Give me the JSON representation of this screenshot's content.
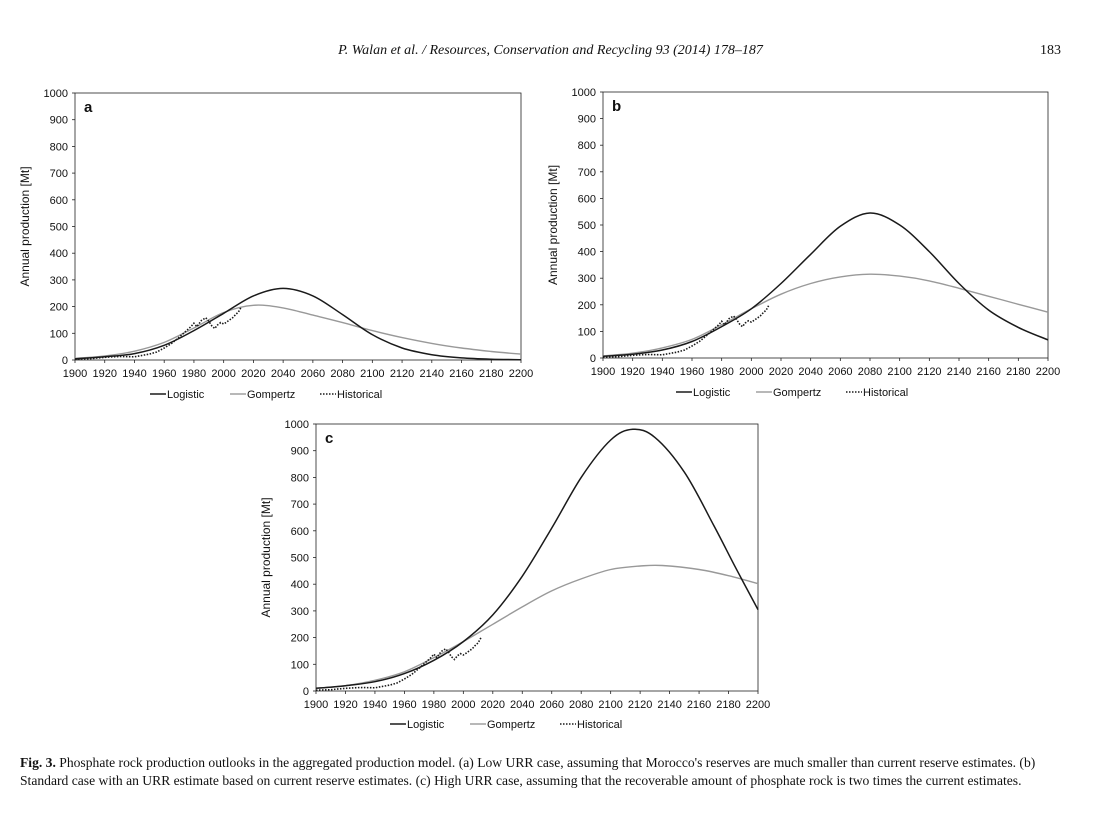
{
  "header": {
    "journal_ref": "P. Walan et al. / Resources, Conservation and Recycling 93 (2014) 178–187",
    "page_number": "183"
  },
  "chart_data": [
    {
      "type": "line",
      "panel_label": "a",
      "ylabel": "Annual production [Mt]",
      "xlim": [
        1900,
        2200
      ],
      "ylim": [
        0,
        1000
      ],
      "x_ticks": [
        1900,
        1920,
        1940,
        1960,
        1980,
        2000,
        2020,
        2040,
        2060,
        2080,
        2100,
        2120,
        2140,
        2160,
        2180,
        2200
      ],
      "y_ticks": [
        0,
        100,
        200,
        300,
        400,
        500,
        600,
        700,
        800,
        900,
        1000
      ],
      "series": [
        {
          "name": "Logistic",
          "style": "solid",
          "color": "#1a1a1a",
          "points": [
            [
              1900,
              4
            ],
            [
              1920,
              12
            ],
            [
              1940,
              24
            ],
            [
              1960,
              55
            ],
            [
              1980,
              110
            ],
            [
              2000,
              175
            ],
            [
              2020,
              240
            ],
            [
              2040,
              268
            ],
            [
              2060,
              240
            ],
            [
              2080,
              170
            ],
            [
              2100,
              95
            ],
            [
              2120,
              45
            ],
            [
              2140,
              20
            ],
            [
              2160,
              8
            ],
            [
              2180,
              3
            ],
            [
              2200,
              1
            ]
          ]
        },
        {
          "name": "Gompertz",
          "style": "solid",
          "color": "#999999",
          "points": [
            [
              1900,
              6
            ],
            [
              1920,
              15
            ],
            [
              1940,
              33
            ],
            [
              1960,
              66
            ],
            [
              1980,
              120
            ],
            [
              2000,
              178
            ],
            [
              2020,
              205
            ],
            [
              2040,
              195
            ],
            [
              2060,
              168
            ],
            [
              2080,
              140
            ],
            [
              2100,
              110
            ],
            [
              2120,
              84
            ],
            [
              2140,
              62
            ],
            [
              2160,
              45
            ],
            [
              2180,
              32
            ],
            [
              2200,
              22
            ]
          ]
        },
        {
          "name": "Historical",
          "style": "dotted",
          "color": "#1a1a1a",
          "points": [
            [
              1900,
              3
            ],
            [
              1910,
              5
            ],
            [
              1920,
              10
            ],
            [
              1930,
              13
            ],
            [
              1940,
              12
            ],
            [
              1950,
              22
            ],
            [
              1955,
              30
            ],
            [
              1960,
              45
            ],
            [
              1965,
              62
            ],
            [
              1970,
              85
            ],
            [
              1975,
              110
            ],
            [
              1978,
              125
            ],
            [
              1980,
              138
            ],
            [
              1982,
              125
            ],
            [
              1985,
              148
            ],
            [
              1988,
              158
            ],
            [
              1990,
              145
            ],
            [
              1992,
              128
            ],
            [
              1994,
              118
            ],
            [
              1996,
              132
            ],
            [
              1998,
              140
            ],
            [
              2000,
              135
            ],
            [
              2002,
              142
            ],
            [
              2004,
              150
            ],
            [
              2006,
              158
            ],
            [
              2008,
              170
            ],
            [
              2010,
              180
            ],
            [
              2012,
              200
            ]
          ]
        }
      ],
      "legend": [
        "Logistic",
        "Gompertz",
        "Historical"
      ]
    },
    {
      "type": "line",
      "panel_label": "b",
      "ylabel": "Annual production [Mt]",
      "xlim": [
        1900,
        2200
      ],
      "ylim": [
        0,
        1000
      ],
      "x_ticks": [
        1900,
        1920,
        1940,
        1960,
        1980,
        2000,
        2020,
        2040,
        2060,
        2080,
        2100,
        2120,
        2140,
        2160,
        2180,
        2200
      ],
      "y_ticks": [
        0,
        100,
        200,
        300,
        400,
        500,
        600,
        700,
        800,
        900,
        1000
      ],
      "series": [
        {
          "name": "Logistic",
          "style": "solid",
          "color": "#1a1a1a",
          "points": [
            [
              1900,
              6
            ],
            [
              1920,
              14
            ],
            [
              1940,
              30
            ],
            [
              1960,
              62
            ],
            [
              1980,
              118
            ],
            [
              2000,
              185
            ],
            [
              2020,
              280
            ],
            [
              2040,
              390
            ],
            [
              2060,
              495
            ],
            [
              2080,
              545
            ],
            [
              2100,
              500
            ],
            [
              2120,
              400
            ],
            [
              2140,
              280
            ],
            [
              2160,
              180
            ],
            [
              2180,
              115
            ],
            [
              2200,
              68
            ]
          ]
        },
        {
          "name": "Gompertz",
          "style": "solid",
          "color": "#999999",
          "points": [
            [
              1900,
              8
            ],
            [
              1920,
              18
            ],
            [
              1940,
              38
            ],
            [
              1960,
              70
            ],
            [
              1980,
              125
            ],
            [
              2000,
              185
            ],
            [
              2020,
              240
            ],
            [
              2040,
              280
            ],
            [
              2060,
              305
            ],
            [
              2080,
              315
            ],
            [
              2100,
              308
            ],
            [
              2120,
              290
            ],
            [
              2140,
              262
            ],
            [
              2160,
              232
            ],
            [
              2180,
              202
            ],
            [
              2200,
              172
            ]
          ]
        },
        {
          "name": "Historical",
          "style": "dotted",
          "color": "#1a1a1a",
          "points": [
            [
              1900,
              3
            ],
            [
              1910,
              5
            ],
            [
              1920,
              10
            ],
            [
              1930,
              13
            ],
            [
              1940,
              12
            ],
            [
              1950,
              22
            ],
            [
              1955,
              30
            ],
            [
              1960,
              45
            ],
            [
              1965,
              62
            ],
            [
              1970,
              85
            ],
            [
              1975,
              110
            ],
            [
              1978,
              125
            ],
            [
              1980,
              138
            ],
            [
              1982,
              125
            ],
            [
              1985,
              148
            ],
            [
              1988,
              158
            ],
            [
              1990,
              145
            ],
            [
              1992,
              128
            ],
            [
              1994,
              118
            ],
            [
              1996,
              132
            ],
            [
              1998,
              140
            ],
            [
              2000,
              135
            ],
            [
              2002,
              142
            ],
            [
              2004,
              150
            ],
            [
              2006,
              158
            ],
            [
              2008,
              170
            ],
            [
              2010,
              180
            ],
            [
              2012,
              200
            ]
          ]
        }
      ],
      "legend": [
        "Logistic",
        "Gompertz",
        "Historical"
      ]
    },
    {
      "type": "line",
      "panel_label": "c",
      "ylabel": "Annual production [Mt]",
      "xlim": [
        1900,
        2200
      ],
      "ylim": [
        0,
        1000
      ],
      "x_ticks": [
        1900,
        1920,
        1940,
        1960,
        1980,
        2000,
        2020,
        2040,
        2060,
        2080,
        2100,
        2120,
        2140,
        2160,
        2180,
        2200
      ],
      "y_ticks": [
        0,
        100,
        200,
        300,
        400,
        500,
        600,
        700,
        800,
        900,
        1000
      ],
      "series": [
        {
          "name": "Logistic",
          "style": "solid",
          "color": "#1a1a1a",
          "points": [
            [
              1900,
              10
            ],
            [
              1920,
              20
            ],
            [
              1940,
              35
            ],
            [
              1960,
              65
            ],
            [
              1980,
              115
            ],
            [
              2000,
              185
            ],
            [
              2020,
              285
            ],
            [
              2040,
              430
            ],
            [
              2060,
              610
            ],
            [
              2080,
              800
            ],
            [
              2100,
              940
            ],
            [
              2115,
              980
            ],
            [
              2130,
              950
            ],
            [
              2150,
              820
            ],
            [
              2170,
              620
            ],
            [
              2185,
              460
            ],
            [
              2200,
              305
            ]
          ]
        },
        {
          "name": "Gompertz",
          "style": "solid",
          "color": "#999999",
          "points": [
            [
              1900,
              10
            ],
            [
              1920,
              20
            ],
            [
              1940,
              40
            ],
            [
              1960,
              72
            ],
            [
              1980,
              125
            ],
            [
              2000,
              185
            ],
            [
              2020,
              250
            ],
            [
              2040,
              315
            ],
            [
              2060,
              375
            ],
            [
              2080,
              420
            ],
            [
              2100,
              455
            ],
            [
              2120,
              468
            ],
            [
              2135,
              470
            ],
            [
              2160,
              455
            ],
            [
              2180,
              432
            ],
            [
              2200,
              402
            ]
          ]
        },
        {
          "name": "Historical",
          "style": "dotted",
          "color": "#1a1a1a",
          "points": [
            [
              1900,
              3
            ],
            [
              1910,
              5
            ],
            [
              1920,
              10
            ],
            [
              1930,
              13
            ],
            [
              1940,
              12
            ],
            [
              1950,
              22
            ],
            [
              1955,
              30
            ],
            [
              1960,
              45
            ],
            [
              1965,
              62
            ],
            [
              1970,
              85
            ],
            [
              1975,
              110
            ],
            [
              1978,
              125
            ],
            [
              1980,
              138
            ],
            [
              1982,
              125
            ],
            [
              1985,
              148
            ],
            [
              1988,
              158
            ],
            [
              1990,
              145
            ],
            [
              1992,
              128
            ],
            [
              1994,
              118
            ],
            [
              1996,
              132
            ],
            [
              1998,
              140
            ],
            [
              2000,
              135
            ],
            [
              2002,
              142
            ],
            [
              2004,
              150
            ],
            [
              2006,
              158
            ],
            [
              2008,
              170
            ],
            [
              2010,
              180
            ],
            [
              2012,
              200
            ]
          ]
        }
      ],
      "legend": [
        "Logistic",
        "Gompertz",
        "Historical"
      ]
    }
  ],
  "caption": {
    "label": "Fig. 3.",
    "text": "Phosphate rock production outlooks in the aggregated production model. (a) Low URR case, assuming that Morocco's reserves are much smaller than current reserve estimates. (b) Standard case with an URR estimate based on current reserve estimates. (c) High URR case, assuming that the recoverable amount of phosphate rock is two times the current estimates."
  }
}
